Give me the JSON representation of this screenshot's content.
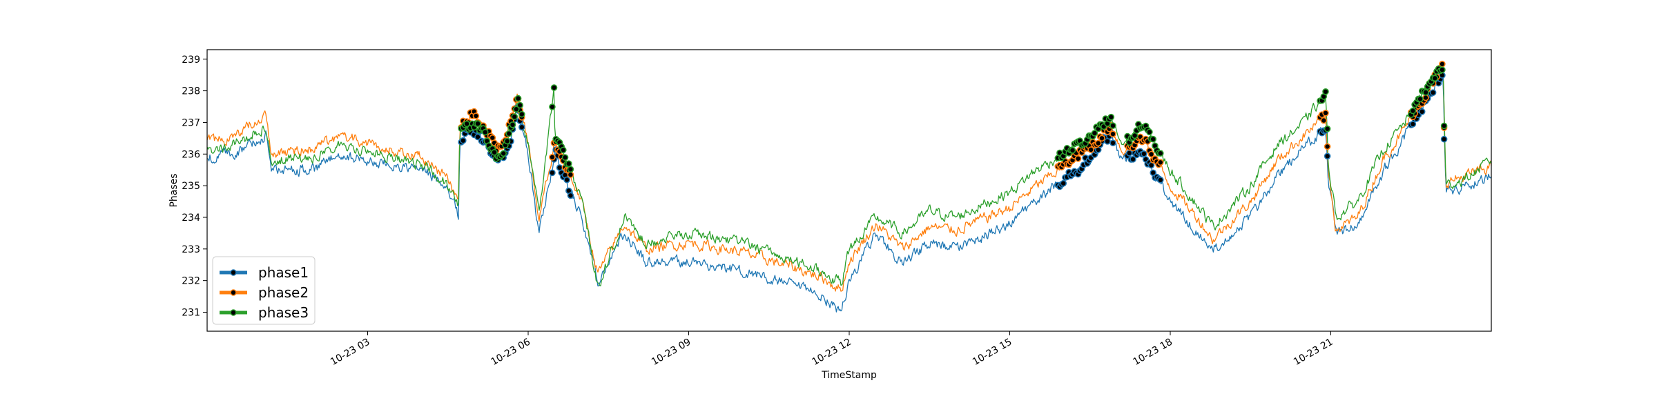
{
  "chart_data": {
    "type": "line",
    "title": "",
    "xlabel": "TimeStamp",
    "ylabel": "Phases",
    "x_ticks": [
      "10-23 03",
      "10-23 06",
      "10-23 09",
      "10-23 12",
      "10-23 15",
      "10-23 18",
      "10-23 21"
    ],
    "x_tick_hours": [
      3,
      6,
      9,
      12,
      15,
      18,
      21
    ],
    "xlim_hours": [
      0,
      24
    ],
    "y_ticks": [
      231,
      232,
      233,
      234,
      235,
      236,
      237,
      238,
      239
    ],
    "ylim": [
      230.4,
      239.3
    ],
    "grid": false,
    "legend_position": "lower-left",
    "series": [
      {
        "name": "phase1",
        "color": "#1f77b4",
        "keypoints": [
          [
            0.0,
            235.9
          ],
          [
            0.5,
            236.0
          ],
          [
            1.1,
            236.6
          ],
          [
            1.2,
            235.5
          ],
          [
            2.0,
            235.5
          ],
          [
            2.5,
            236.0
          ],
          [
            3.2,
            235.7
          ],
          [
            4.0,
            235.5
          ],
          [
            4.5,
            235.0
          ],
          [
            4.7,
            234.0
          ],
          [
            4.72,
            236.5
          ],
          [
            5.0,
            236.8
          ],
          [
            5.2,
            236.4
          ],
          [
            5.4,
            235.8
          ],
          [
            5.6,
            236.0
          ],
          [
            5.8,
            237.5
          ],
          [
            6.0,
            236.0
          ],
          [
            6.2,
            233.5
          ],
          [
            6.5,
            236.0
          ],
          [
            7.0,
            234.0
          ],
          [
            7.3,
            232.0
          ],
          [
            7.8,
            233.5
          ],
          [
            8.2,
            232.6
          ],
          [
            9.0,
            232.6
          ],
          [
            10.0,
            232.3
          ],
          [
            11.0,
            231.8
          ],
          [
            11.5,
            231.5
          ],
          [
            11.85,
            231.0
          ],
          [
            12.0,
            232.0
          ],
          [
            12.5,
            233.5
          ],
          [
            13.0,
            232.5
          ],
          [
            13.5,
            233.2
          ],
          [
            14.0,
            233.0
          ],
          [
            15.0,
            233.8
          ],
          [
            15.5,
            234.5
          ],
          [
            16.0,
            235.2
          ],
          [
            16.5,
            235.8
          ],
          [
            16.9,
            236.6
          ],
          [
            17.1,
            235.8
          ],
          [
            17.5,
            236.0
          ],
          [
            18.0,
            234.5
          ],
          [
            18.5,
            233.5
          ],
          [
            18.8,
            233.0
          ],
          [
            19.5,
            234.0
          ],
          [
            20.0,
            235.3
          ],
          [
            20.5,
            236.2
          ],
          [
            20.9,
            236.8
          ],
          [
            20.95,
            235.3
          ],
          [
            21.1,
            233.5
          ],
          [
            21.5,
            233.8
          ],
          [
            22.0,
            235.5
          ],
          [
            22.3,
            236.3
          ],
          [
            22.8,
            237.8
          ],
          [
            23.1,
            238.6
          ],
          [
            23.15,
            234.8
          ],
          [
            23.5,
            235.0
          ],
          [
            24.0,
            235.3
          ]
        ]
      },
      {
        "name": "phase2",
        "color": "#ff7f0e",
        "keypoints": [
          [
            0.0,
            236.4
          ],
          [
            0.5,
            236.5
          ],
          [
            1.1,
            237.3
          ],
          [
            1.2,
            236.0
          ],
          [
            2.0,
            236.2
          ],
          [
            2.5,
            236.6
          ],
          [
            3.2,
            236.2
          ],
          [
            4.0,
            235.9
          ],
          [
            4.5,
            235.2
          ],
          [
            4.7,
            234.5
          ],
          [
            4.72,
            236.9
          ],
          [
            5.0,
            237.3
          ],
          [
            5.2,
            236.8
          ],
          [
            5.4,
            236.2
          ],
          [
            5.6,
            236.5
          ],
          [
            5.8,
            237.8
          ],
          [
            6.0,
            236.4
          ],
          [
            6.2,
            234.0
          ],
          [
            6.5,
            236.4
          ],
          [
            7.0,
            234.5
          ],
          [
            7.3,
            232.2
          ],
          [
            7.8,
            233.8
          ],
          [
            8.2,
            233.0
          ],
          [
            9.0,
            233.2
          ],
          [
            10.0,
            232.9
          ],
          [
            11.0,
            232.4
          ],
          [
            11.5,
            232.1
          ],
          [
            11.85,
            231.7
          ],
          [
            12.0,
            232.6
          ],
          [
            12.5,
            233.8
          ],
          [
            13.0,
            233.0
          ],
          [
            13.5,
            233.7
          ],
          [
            14.0,
            233.6
          ],
          [
            15.0,
            234.3
          ],
          [
            15.5,
            235.0
          ],
          [
            16.0,
            235.6
          ],
          [
            16.5,
            236.2
          ],
          [
            16.9,
            236.9
          ],
          [
            17.1,
            236.1
          ],
          [
            17.5,
            236.5
          ],
          [
            18.0,
            235.0
          ],
          [
            18.5,
            234.0
          ],
          [
            18.8,
            233.3
          ],
          [
            19.5,
            234.5
          ],
          [
            20.0,
            235.8
          ],
          [
            20.5,
            236.6
          ],
          [
            20.9,
            237.2
          ],
          [
            20.95,
            235.6
          ],
          [
            21.1,
            233.6
          ],
          [
            21.5,
            234.0
          ],
          [
            22.0,
            235.9
          ],
          [
            22.3,
            236.6
          ],
          [
            22.8,
            238.0
          ],
          [
            23.1,
            238.7
          ],
          [
            23.15,
            235.1
          ],
          [
            23.5,
            235.3
          ],
          [
            24.0,
            235.6
          ]
        ]
      },
      {
        "name": "phase3",
        "color": "#2ca02c",
        "keypoints": [
          [
            0.0,
            236.1
          ],
          [
            0.5,
            236.3
          ],
          [
            1.1,
            236.9
          ],
          [
            1.2,
            235.8
          ],
          [
            2.0,
            235.9
          ],
          [
            2.5,
            236.3
          ],
          [
            3.2,
            236.0
          ],
          [
            4.0,
            235.7
          ],
          [
            4.5,
            235.0
          ],
          [
            4.7,
            234.3
          ],
          [
            4.72,
            236.7
          ],
          [
            5.0,
            237.1
          ],
          [
            5.2,
            236.6
          ],
          [
            5.4,
            236.0
          ],
          [
            5.6,
            236.3
          ],
          [
            5.8,
            237.7
          ],
          [
            6.0,
            236.3
          ],
          [
            6.2,
            234.1
          ],
          [
            6.48,
            238.0
          ],
          [
            6.5,
            236.6
          ],
          [
            7.0,
            234.6
          ],
          [
            7.3,
            231.8
          ],
          [
            7.8,
            234.0
          ],
          [
            8.2,
            233.2
          ],
          [
            9.0,
            233.5
          ],
          [
            10.0,
            233.2
          ],
          [
            11.0,
            232.6
          ],
          [
            11.5,
            232.3
          ],
          [
            11.85,
            231.9
          ],
          [
            12.0,
            233.0
          ],
          [
            12.5,
            234.0
          ],
          [
            13.0,
            233.5
          ],
          [
            13.5,
            234.2
          ],
          [
            14.0,
            234.0
          ],
          [
            15.0,
            234.8
          ],
          [
            15.5,
            235.5
          ],
          [
            16.0,
            236.0
          ],
          [
            16.5,
            236.5
          ],
          [
            16.9,
            237.1
          ],
          [
            17.1,
            236.3
          ],
          [
            17.5,
            236.9
          ],
          [
            18.0,
            235.5
          ],
          [
            18.5,
            234.4
          ],
          [
            18.8,
            233.7
          ],
          [
            19.5,
            235.0
          ],
          [
            20.0,
            236.3
          ],
          [
            20.5,
            237.0
          ],
          [
            20.9,
            237.9
          ],
          [
            20.95,
            235.8
          ],
          [
            21.1,
            234.0
          ],
          [
            21.5,
            234.5
          ],
          [
            22.0,
            236.2
          ],
          [
            22.3,
            236.8
          ],
          [
            22.8,
            238.1
          ],
          [
            23.1,
            238.8
          ],
          [
            23.15,
            235.0
          ],
          [
            23.5,
            235.2
          ],
          [
            24.0,
            235.8
          ]
        ]
      }
    ],
    "markers": {
      "color": "#000000",
      "clusters": [
        {
          "from_hour": 4.75,
          "to_hour": 5.9
        },
        {
          "from_hour": 6.45,
          "to_hour": 6.8
        },
        {
          "from_hour": 15.9,
          "to_hour": 16.95
        },
        {
          "from_hour": 17.2,
          "to_hour": 17.85
        },
        {
          "from_hour": 20.8,
          "to_hour": 20.95
        },
        {
          "from_hour": 22.5,
          "to_hour": 23.12
        }
      ]
    }
  }
}
